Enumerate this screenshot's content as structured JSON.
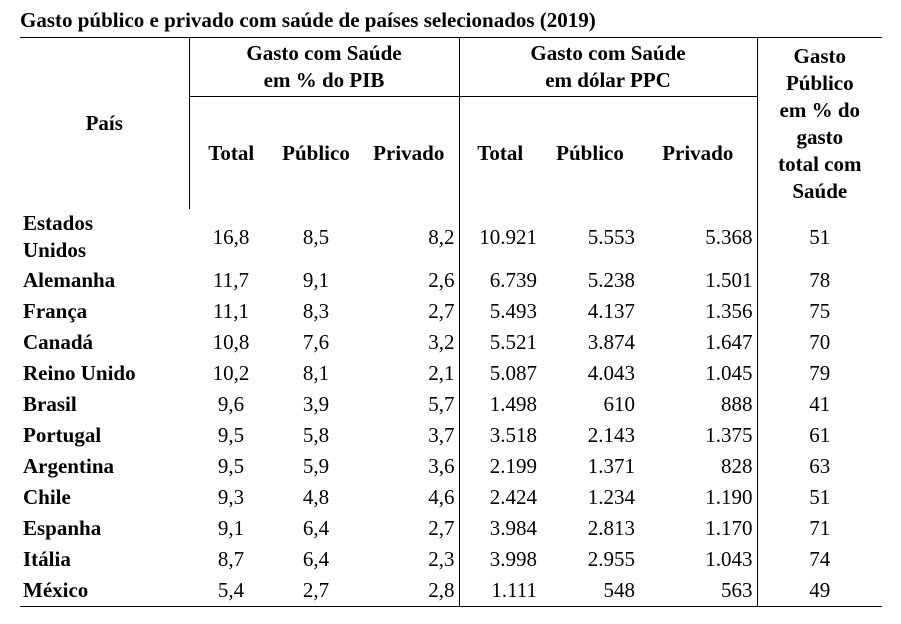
{
  "title": "Gasto público e privado com saúde de países selecionados (2019)",
  "headers": {
    "pais": "País",
    "group_pib": [
      "Gasto com Saúde",
      "em % do PIB"
    ],
    "group_ppc": [
      "Gasto com Saúde",
      "em dólar PPC"
    ],
    "gasto_publico": [
      "Gasto",
      "Público",
      "em % do",
      "gasto",
      "total com",
      "Saúde"
    ],
    "sub": [
      "Total",
      "Público",
      "Privado",
      "Total",
      "Público",
      "Privado"
    ]
  },
  "rows": [
    {
      "pais": [
        "Estados",
        "Unidos"
      ],
      "pib_total": "16,8",
      "pib_publico": "8,5",
      "pib_privado": "8,2",
      "ppc_total": "10.921",
      "ppc_publico": "5.553",
      "ppc_privado": "5.368",
      "gasto_publico_pct": "51"
    },
    {
      "pais": [
        "Alemanha"
      ],
      "pib_total": "11,7",
      "pib_publico": "9,1",
      "pib_privado": "2,6",
      "ppc_total": "6.739",
      "ppc_publico": "5.238",
      "ppc_privado": "1.501",
      "gasto_publico_pct": "78"
    },
    {
      "pais": [
        "França"
      ],
      "pib_total": "11,1",
      "pib_publico": "8,3",
      "pib_privado": "2,7",
      "ppc_total": "5.493",
      "ppc_publico": "4.137",
      "ppc_privado": "1.356",
      "gasto_publico_pct": "75"
    },
    {
      "pais": [
        "Canadá"
      ],
      "pib_total": "10,8",
      "pib_publico": "7,6",
      "pib_privado": "3,2",
      "ppc_total": "5.521",
      "ppc_publico": "3.874",
      "ppc_privado": "1.647",
      "gasto_publico_pct": "70"
    },
    {
      "pais": [
        "Reino Unido"
      ],
      "pib_total": "10,2",
      "pib_publico": "8,1",
      "pib_privado": "2,1",
      "ppc_total": "5.087",
      "ppc_publico": "4.043",
      "ppc_privado": "1.045",
      "gasto_publico_pct": "79"
    },
    {
      "pais": [
        "Brasil"
      ],
      "pib_total": "9,6",
      "pib_publico": "3,9",
      "pib_privado": "5,7",
      "ppc_total": "1.498",
      "ppc_publico": "610",
      "ppc_privado": "888",
      "gasto_publico_pct": "41"
    },
    {
      "pais": [
        "Portugal"
      ],
      "pib_total": "9,5",
      "pib_publico": "5,8",
      "pib_privado": "3,7",
      "ppc_total": "3.518",
      "ppc_publico": "2.143",
      "ppc_privado": "1.375",
      "gasto_publico_pct": "61"
    },
    {
      "pais": [
        "Argentina"
      ],
      "pib_total": "9,5",
      "pib_publico": "5,9",
      "pib_privado": "3,6",
      "ppc_total": "2.199",
      "ppc_publico": "1.371",
      "ppc_privado": "828",
      "gasto_publico_pct": "63"
    },
    {
      "pais": [
        "Chile"
      ],
      "pib_total": "9,3",
      "pib_publico": "4,8",
      "pib_privado": "4,6",
      "ppc_total": "2.424",
      "ppc_publico": "1.234",
      "ppc_privado": "1.190",
      "gasto_publico_pct": "51"
    },
    {
      "pais": [
        "Espanha"
      ],
      "pib_total": "9,1",
      "pib_publico": "6,4",
      "pib_privado": "2,7",
      "ppc_total": "3.984",
      "ppc_publico": "2.813",
      "ppc_privado": "1.170",
      "gasto_publico_pct": "71"
    },
    {
      "pais": [
        "Itália"
      ],
      "pib_total": "8,7",
      "pib_publico": "6,4",
      "pib_privado": "2,3",
      "ppc_total": "3.998",
      "ppc_publico": "2.955",
      "ppc_privado": "1.043",
      "gasto_publico_pct": "74"
    },
    {
      "pais": [
        "México"
      ],
      "pib_total": "5,4",
      "pib_publico": "2,7",
      "pib_privado": "2,8",
      "ppc_total": "1.111",
      "ppc_publico": "548",
      "ppc_privado": "563",
      "gasto_publico_pct": "49"
    }
  ]
}
